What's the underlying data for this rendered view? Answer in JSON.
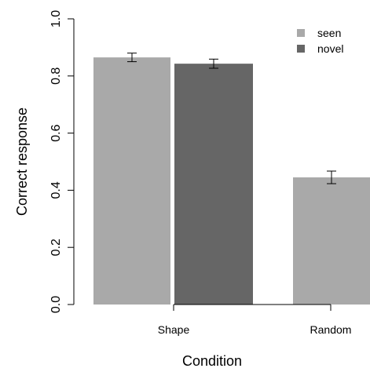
{
  "chart_data": {
    "type": "bar",
    "xlabel": "Condition",
    "ylabel": "Correct response",
    "ylim": [
      0,
      1.0
    ],
    "yticks": [
      "0.0",
      "0.2",
      "0.4",
      "0.6",
      "0.8",
      "1.0"
    ],
    "categories": [
      "Shape",
      "Random"
    ],
    "series": [
      {
        "name": "seen",
        "color": "#a9a9a9",
        "values": [
          0.865,
          0.445
        ],
        "error": [
          0.015,
          0.022
        ]
      },
      {
        "name": "novel",
        "color": "#666666",
        "values": [
          0.843,
          null
        ],
        "error": [
          0.016,
          null
        ]
      }
    ],
    "legend_position": "top-right",
    "grid": false
  }
}
